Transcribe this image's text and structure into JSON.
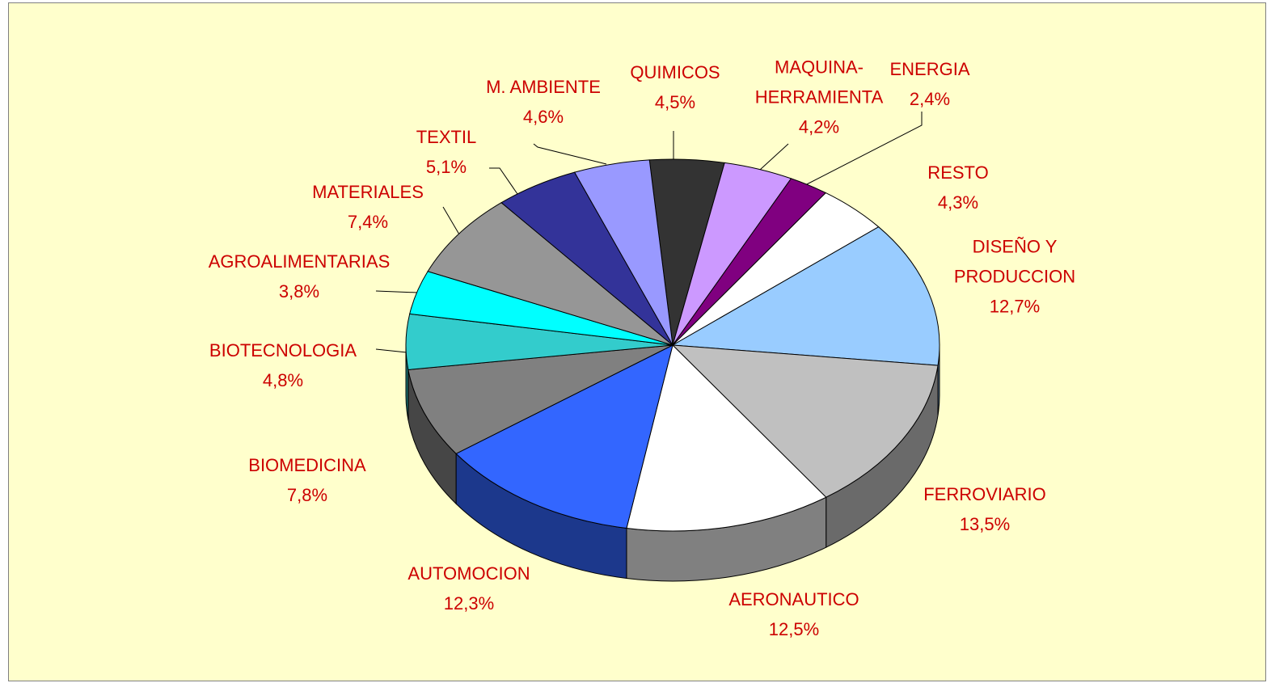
{
  "chart_data": {
    "type": "pie",
    "categories": [
      "QUIMICOS",
      "MAQUINA-HERRAMIENTA",
      "ENERGIA",
      "RESTO",
      "DISEÑO Y PRODUCCION",
      "FERROVIARIO",
      "AERONAUTICO",
      "AUTOMOCION",
      "BIOMEDICINA",
      "BIOTECNOLOGIA",
      "AGROALIMENTARIAS",
      "MATERIALES",
      "TEXTIL",
      "M. AMBIENTE"
    ],
    "values": [
      4.5,
      4.2,
      2.4,
      4.3,
      12.7,
      13.5,
      12.5,
      12.3,
      7.8,
      4.8,
      3.8,
      7.4,
      5.1,
      4.6
    ],
    "value_labels": [
      "4,5%",
      "4,2%",
      "2,4%",
      "4,3%",
      "12,7%",
      "13,5%",
      "12,5%",
      "12,3%",
      "7,8%",
      "4,8%",
      "3,8%",
      "7,4%",
      "5,1%",
      "4,6%"
    ],
    "colors": [
      "#333333",
      "#cc99ff",
      "#800080",
      "#ffffff",
      "#99ccff",
      "#c0c0c0",
      "#ffffff",
      "#3366ff",
      "#808080",
      "#33cccc",
      "#00ffff",
      "#969696",
      "#333399",
      "#9999ff"
    ],
    "label_color": "#cc0000"
  }
}
